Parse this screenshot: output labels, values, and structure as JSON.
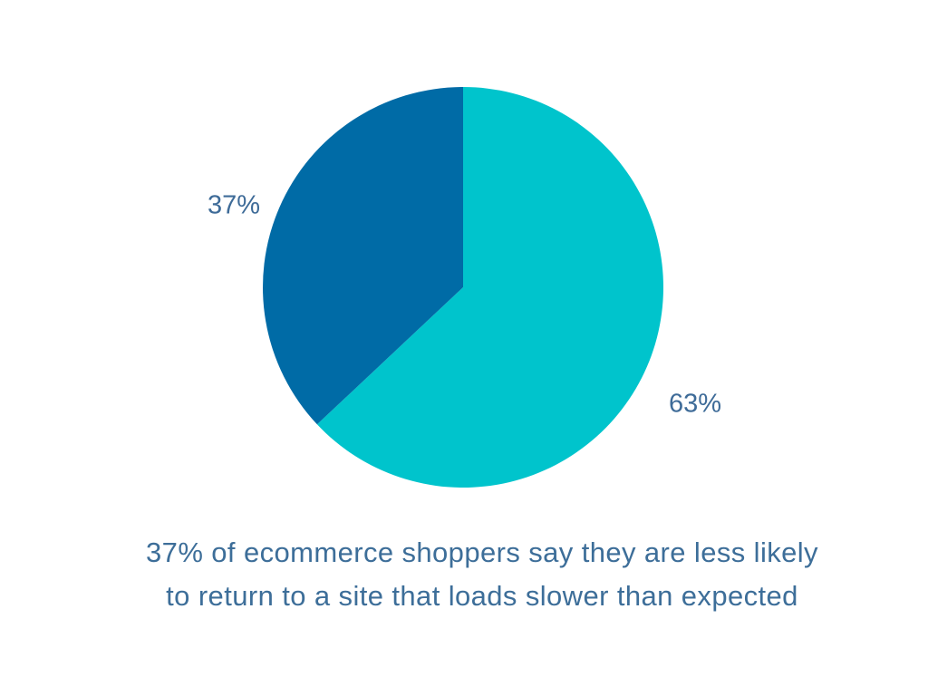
{
  "chart_data": {
    "type": "pie",
    "values": [
      63,
      37
    ],
    "labels": [
      "63%",
      "37%"
    ],
    "colors": [
      "#00c4cc",
      "#006ba6"
    ],
    "start_angle_deg": 0,
    "direction": "clockwise",
    "label_color": "#3e6b98",
    "caption_color": "#3d6e99",
    "background": "#ffffff",
    "caption": "37% of ecommerce shoppers say they are less likely to return to a site that loads slower than expected",
    "caption_lines": [
      "37% of ecommerce shoppers say they are less likely",
      "to return to a site that loads slower than expected"
    ]
  }
}
